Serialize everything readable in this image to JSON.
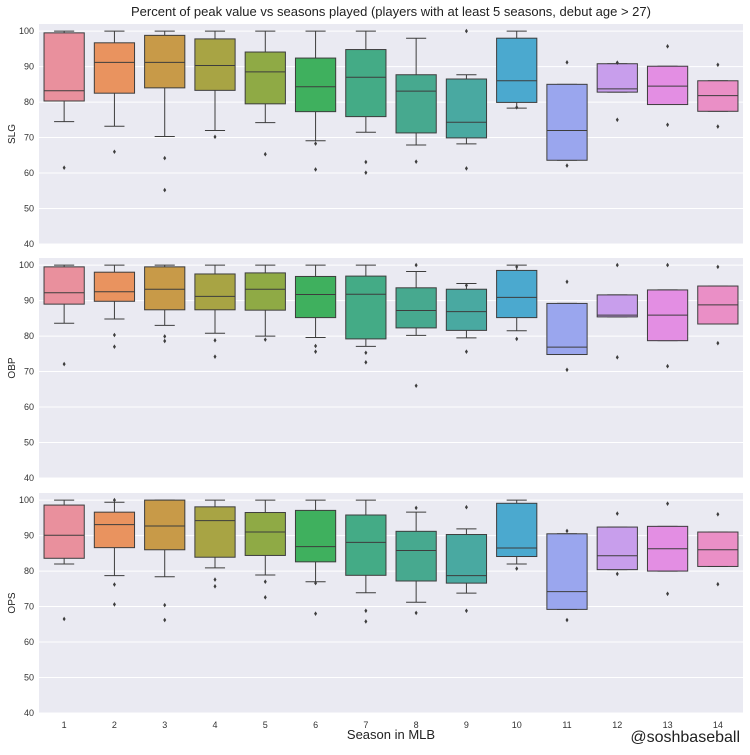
{
  "chart_data": {
    "type": "box",
    "title": "Percent of peak value vs seasons played (players with at least 5 seasons, debut age > 27)",
    "xlabel": "Season in MLB",
    "credit": "@soshbaseball",
    "categories": [
      "1",
      "2",
      "3",
      "4",
      "5",
      "6",
      "7",
      "8",
      "9",
      "10",
      "11",
      "12",
      "13",
      "14"
    ],
    "colors": [
      "#e9909d",
      "#e9935f",
      "#c89a48",
      "#a8a444",
      "#8faa45",
      "#3fb05e",
      "#44ab86",
      "#47a98f",
      "#49a9a1",
      "#4ba9cf",
      "#9aa6ee",
      "#c89eec",
      "#e38ee3",
      "#ea8fc6"
    ],
    "ylim": [
      40,
      102
    ],
    "yticks": [
      40,
      50,
      60,
      70,
      80,
      90,
      100
    ],
    "grid": true,
    "panels": [
      {
        "ylabel": "SLG",
        "boxes": [
          {
            "q1": 80.3,
            "median": 83.2,
            "q3": 99.5,
            "whisker_low": 74.5,
            "whisker_high": 100,
            "outliers": [
              61.5
            ]
          },
          {
            "q1": 82.5,
            "median": 91.2,
            "q3": 96.7,
            "whisker_low": 73.2,
            "whisker_high": 100,
            "outliers": [
              66
            ]
          },
          {
            "q1": 84.0,
            "median": 91.2,
            "q3": 98.8,
            "whisker_low": 70.3,
            "whisker_high": 100,
            "outliers": [
              64.2,
              55.2
            ]
          },
          {
            "q1": 83.3,
            "median": 90.3,
            "q3": 97.8,
            "whisker_low": 72.0,
            "whisker_high": 100,
            "outliers": [
              70.2
            ]
          },
          {
            "q1": 79.5,
            "median": 88.5,
            "q3": 94.1,
            "whisker_low": 74.2,
            "whisker_high": 100,
            "outliers": [
              65.3
            ]
          },
          {
            "q1": 77.3,
            "median": 84.3,
            "q3": 92.4,
            "whisker_low": 69.1,
            "whisker_high": 100,
            "outliers": [
              68.3,
              61.0
            ]
          },
          {
            "q1": 75.9,
            "median": 87.0,
            "q3": 94.8,
            "whisker_low": 71.5,
            "whisker_high": 100,
            "outliers": [
              63.1,
              60.1
            ]
          },
          {
            "q1": 71.3,
            "median": 83.1,
            "q3": 87.7,
            "whisker_low": 67.9,
            "whisker_high": 98.0,
            "outliers": [
              63.2
            ]
          },
          {
            "q1": 69.9,
            "median": 74.3,
            "q3": 86.5,
            "whisker_low": 68.2,
            "whisker_high": 87.7,
            "outliers": [
              100,
              61.3
            ]
          },
          {
            "q1": 79.9,
            "median": 86.0,
            "q3": 98.0,
            "whisker_low": 78.3,
            "whisker_high": 100,
            "outliers": [
              78.5
            ]
          },
          {
            "q1": 63.6,
            "median": 72.0,
            "q3": 85.0,
            "whisker_low": 63.6,
            "whisker_high": 85.0,
            "outliers": [
              91.2,
              62.1
            ]
          },
          {
            "q1": 82.8,
            "median": 83.7,
            "q3": 90.8,
            "whisker_low": 82.8,
            "whisker_high": 90.8,
            "outliers": [
              91.1,
              75.0
            ]
          },
          {
            "q1": 79.3,
            "median": 84.5,
            "q3": 90.1,
            "whisker_low": 79.3,
            "whisker_high": 90.1,
            "outliers": [
              95.7,
              73.6
            ]
          },
          {
            "q1": 77.4,
            "median": 81.8,
            "q3": 86.0,
            "whisker_low": 77.4,
            "whisker_high": 86.0,
            "outliers": [
              90.5,
              73.1
            ]
          }
        ]
      },
      {
        "ylabel": "OBP",
        "boxes": [
          {
            "q1": 89.0,
            "median": 92.2,
            "q3": 99.5,
            "whisker_low": 83.6,
            "whisker_high": 100,
            "outliers": [
              72.1
            ]
          },
          {
            "q1": 89.8,
            "median": 92.5,
            "q3": 98.0,
            "whisker_low": 84.8,
            "whisker_high": 100,
            "outliers": [
              80.3,
              77.0
            ]
          },
          {
            "q1": 87.4,
            "median": 93.2,
            "q3": 99.5,
            "whisker_low": 83.0,
            "whisker_high": 100,
            "outliers": [
              79.9,
              78.6
            ]
          },
          {
            "q1": 87.4,
            "median": 91.2,
            "q3": 97.5,
            "whisker_low": 80.8,
            "whisker_high": 100,
            "outliers": [
              78.8,
              74.2
            ]
          },
          {
            "q1": 87.3,
            "median": 93.2,
            "q3": 97.8,
            "whisker_low": 80.0,
            "whisker_high": 100,
            "outliers": [
              79.0
            ]
          },
          {
            "q1": 85.2,
            "median": 91.7,
            "q3": 96.8,
            "whisker_low": 79.6,
            "whisker_high": 100,
            "outliers": [
              77.2,
              75.6
            ]
          },
          {
            "q1": 79.2,
            "median": 91.8,
            "q3": 96.9,
            "whisker_low": 77.1,
            "whisker_high": 100,
            "outliers": [
              75.3,
              72.6
            ]
          },
          {
            "q1": 82.3,
            "median": 87.2,
            "q3": 93.6,
            "whisker_low": 80.2,
            "whisker_high": 98.2,
            "outliers": [
              100,
              66.0
            ]
          },
          {
            "q1": 81.6,
            "median": 86.9,
            "q3": 93.2,
            "whisker_low": 79.5,
            "whisker_high": 94.8,
            "outliers": [
              94.3,
              75.6
            ]
          },
          {
            "q1": 85.2,
            "median": 90.9,
            "q3": 98.5,
            "whisker_low": 81.5,
            "whisker_high": 100,
            "outliers": [
              99.5,
              79.2
            ]
          },
          {
            "q1": 74.8,
            "median": 76.9,
            "q3": 89.2,
            "whisker_low": 74.8,
            "whisker_high": 89.2,
            "outliers": [
              95.3,
              70.5
            ]
          },
          {
            "q1": 85.4,
            "median": 85.9,
            "q3": 91.6,
            "whisker_low": 85.4,
            "whisker_high": 91.6,
            "outliers": [
              100,
              74.0
            ]
          },
          {
            "q1": 78.7,
            "median": 85.9,
            "q3": 93.0,
            "whisker_low": 78.7,
            "whisker_high": 93.0,
            "outliers": [
              100,
              71.5
            ]
          },
          {
            "q1": 83.4,
            "median": 88.8,
            "q3": 94.1,
            "whisker_low": 83.4,
            "whisker_high": 94.1,
            "outliers": [
              99.5,
              78.0
            ]
          }
        ]
      },
      {
        "ylabel": "OPS",
        "boxes": [
          {
            "q1": 83.6,
            "median": 90.1,
            "q3": 98.6,
            "whisker_low": 82.0,
            "whisker_high": 100,
            "outliers": [
              66.5
            ]
          },
          {
            "q1": 86.6,
            "median": 93.1,
            "q3": 96.6,
            "whisker_low": 78.7,
            "whisker_high": 99.4,
            "outliers": [
              100,
              76.2,
              70.6
            ]
          },
          {
            "q1": 86.0,
            "median": 92.7,
            "q3": 100,
            "whisker_low": 78.4,
            "whisker_high": 100,
            "outliers": [
              70.4,
              66.2
            ]
          },
          {
            "q1": 83.9,
            "median": 94.2,
            "q3": 98.1,
            "whisker_low": 80.9,
            "whisker_high": 100,
            "outliers": [
              77.6,
              75.7
            ]
          },
          {
            "q1": 84.4,
            "median": 91.0,
            "q3": 96.5,
            "whisker_low": 78.9,
            "whisker_high": 100,
            "outliers": [
              77.0,
              72.6
            ]
          },
          {
            "q1": 82.6,
            "median": 86.9,
            "q3": 97.1,
            "whisker_low": 77.0,
            "whisker_high": 100,
            "outliers": [
              76.6,
              68.0
            ]
          },
          {
            "q1": 78.8,
            "median": 88.1,
            "q3": 95.8,
            "whisker_low": 73.9,
            "whisker_high": 100,
            "outliers": [
              68.8,
              65.8
            ]
          },
          {
            "q1": 77.2,
            "median": 85.8,
            "q3": 91.2,
            "whisker_low": 71.2,
            "whisker_high": 96.6,
            "outliers": [
              97.8,
              68.2
            ]
          },
          {
            "q1": 76.6,
            "median": 78.7,
            "q3": 90.3,
            "whisker_low": 73.8,
            "whisker_high": 91.9,
            "outliers": [
              98.0,
              68.8
            ]
          },
          {
            "q1": 84.1,
            "median": 86.5,
            "q3": 99.1,
            "whisker_low": 82.0,
            "whisker_high": 100,
            "outliers": [
              80.7
            ]
          },
          {
            "q1": 69.2,
            "median": 74.2,
            "q3": 90.5,
            "whisker_low": 69.2,
            "whisker_high": 90.5,
            "outliers": [
              91.3,
              66.2
            ]
          },
          {
            "q1": 80.4,
            "median": 84.3,
            "q3": 92.4,
            "whisker_low": 80.4,
            "whisker_high": 92.4,
            "outliers": [
              96.2,
              79.2
            ]
          },
          {
            "q1": 80.0,
            "median": 86.3,
            "q3": 92.6,
            "whisker_low": 80.0,
            "whisker_high": 92.6,
            "outliers": [
              99.0,
              73.6
            ]
          },
          {
            "q1": 81.3,
            "median": 86.0,
            "q3": 91.0,
            "whisker_low": 81.3,
            "whisker_high": 91.0,
            "outliers": [
              96.0,
              76.3
            ]
          }
        ]
      }
    ]
  }
}
